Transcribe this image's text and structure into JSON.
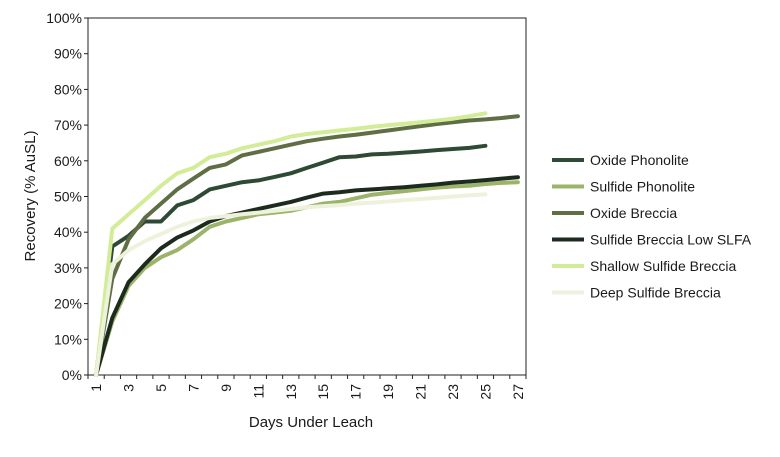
{
  "chart_data": {
    "type": "line",
    "title": "",
    "xlabel": "Days Under Leach",
    "ylabel": "Recovery (% AuSL)",
    "xlim": [
      1,
      27
    ],
    "ylim": [
      0,
      100
    ],
    "x_ticks": [
      "1",
      "3",
      "5",
      "7",
      "9",
      "11",
      "13",
      "15",
      "17",
      "19",
      "21",
      "23",
      "25",
      "27"
    ],
    "y_ticks": [
      "0%",
      "10%",
      "20%",
      "30%",
      "40%",
      "50%",
      "60%",
      "70%",
      "80%",
      "90%",
      "100%"
    ],
    "grid": false,
    "legend_position": "right",
    "series": [
      {
        "name": "Oxide Phonolite",
        "color": "#2e4a35",
        "x": [
          1,
          2,
          3,
          4,
          5,
          6,
          7,
          8,
          9,
          10,
          11,
          12,
          13,
          14,
          15,
          16,
          17,
          18,
          19,
          20,
          21,
          22,
          23,
          24,
          25
        ],
        "values": [
          0,
          36,
          39,
          43,
          43,
          47.5,
          49,
          52,
          53,
          54,
          54.5,
          55.5,
          56.5,
          58,
          59.5,
          61,
          61.2,
          61.8,
          62,
          62.3,
          62.6,
          63,
          63.3,
          63.6,
          64.2
        ]
      },
      {
        "name": "Sulfide Phonolite",
        "color": "#9bb46a",
        "x": [
          1,
          2,
          3,
          4,
          5,
          6,
          7,
          8,
          9,
          10,
          11,
          12,
          13,
          14,
          15,
          16,
          17,
          18,
          19,
          20,
          21,
          22,
          23,
          24,
          25,
          26,
          27
        ],
        "values": [
          0,
          15,
          25,
          30,
          33,
          35,
          38,
          41.5,
          43,
          44,
          45,
          45.5,
          46,
          47,
          48,
          48.5,
          49.5,
          50.5,
          51,
          51.5,
          52,
          52.5,
          52.8,
          53,
          53.5,
          53.8,
          54
        ]
      },
      {
        "name": "Oxide Breccia",
        "color": "#5f6e44",
        "x": [
          1,
          2,
          3,
          4,
          5,
          6,
          7,
          8,
          9,
          10,
          11,
          12,
          13,
          14,
          15,
          16,
          17,
          18,
          19,
          20,
          21,
          22,
          23,
          24,
          25,
          26,
          27
        ],
        "values": [
          0,
          27,
          38,
          44,
          48,
          52,
          55,
          58,
          59,
          61.5,
          62.5,
          63.5,
          64.5,
          65.5,
          66.2,
          66.8,
          67.3,
          67.9,
          68.5,
          69.1,
          69.7,
          70.3,
          70.8,
          71.3,
          71.6,
          72,
          72.5
        ]
      },
      {
        "name": "Sulfide Breccia Low SLFA",
        "color": "#1d2b1e",
        "x": [
          1,
          2,
          3,
          4,
          5,
          6,
          7,
          8,
          9,
          10,
          11,
          12,
          13,
          14,
          15,
          16,
          17,
          18,
          19,
          20,
          21,
          22,
          23,
          24,
          25,
          26,
          27
        ],
        "values": [
          0,
          16,
          26,
          31,
          35.5,
          38.5,
          40.5,
          43,
          44.5,
          45.5,
          46.5,
          47.5,
          48.5,
          49.7,
          50.8,
          51.2,
          51.7,
          52,
          52.3,
          52.6,
          53,
          53.4,
          53.9,
          54.2,
          54.6,
          55,
          55.4
        ]
      },
      {
        "name": "Shallow Sulfide Breccia",
        "color": "#d3ec98",
        "x": [
          1,
          2,
          3,
          4,
          5,
          6,
          7,
          8,
          9,
          10,
          11,
          12,
          13,
          14,
          15,
          16,
          17,
          18,
          19,
          20,
          21,
          22,
          23,
          24,
          25
        ],
        "values": [
          0,
          41,
          45,
          49,
          53,
          56.5,
          58,
          61,
          62,
          63.5,
          64.5,
          65.5,
          66.8,
          67.5,
          68,
          68.5,
          69,
          69.5,
          70,
          70.4,
          70.8,
          71.3,
          71.8,
          72.5,
          73.3
        ]
      },
      {
        "name": "Deep Sulfide Breccia",
        "color": "#eef2dd",
        "x": [
          1,
          2,
          3,
          4,
          5,
          6,
          7,
          8,
          9,
          10,
          11,
          12,
          13,
          14,
          15,
          16,
          17,
          18,
          19,
          20,
          21,
          22,
          23,
          24,
          25
        ],
        "values": [
          0,
          31,
          35,
          37.5,
          39.5,
          41.5,
          43,
          44,
          44.5,
          45,
          45.5,
          46,
          46.5,
          47,
          47.3,
          47.6,
          48,
          48.3,
          48.6,
          49,
          49.3,
          49.6,
          50,
          50.3,
          50.6
        ]
      }
    ]
  }
}
